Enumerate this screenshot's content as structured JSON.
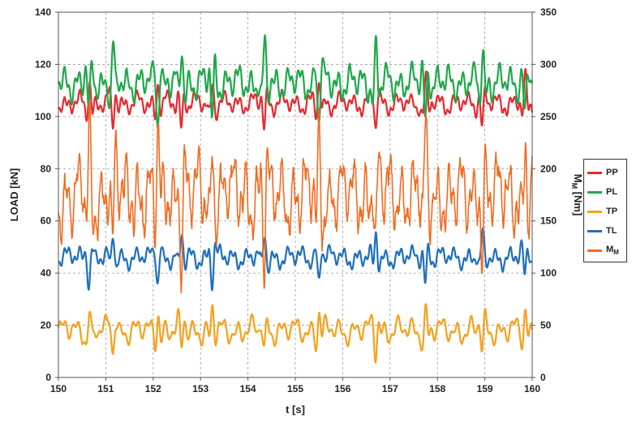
{
  "chart_data": {
    "type": "line",
    "xlabel": "t [s]",
    "ylabel_left": "LOAD [kN]",
    "ylabel_right": {
      "main": "M",
      "sub": "M",
      "unit": " [Nm]"
    },
    "xlim": [
      150,
      160
    ],
    "ylim_left": [
      0,
      140
    ],
    "ylim_right": [
      0,
      350
    ],
    "x_ticks": [
      "150",
      "151",
      "152",
      "153",
      "154",
      "155",
      "156",
      "157",
      "158",
      "159",
      "160"
    ],
    "y_left_ticks": [
      "0",
      "20",
      "40",
      "60",
      "80",
      "100",
      "120",
      "140"
    ],
    "y_right_ticks": [
      "0",
      "50",
      "100",
      "150",
      "200",
      "250",
      "300",
      "350"
    ],
    "grid": "dashed",
    "legend_position": "right",
    "series": [
      {
        "name": "PP",
        "label": "PP",
        "color": "#e8292f",
        "axis": "left",
        "base": 105,
        "amp": 2.5,
        "spike_amp": 9,
        "noise": 0.6,
        "seed": 11
      },
      {
        "name": "PL",
        "label": "PL",
        "color": "#1fa84a",
        "axis": "left",
        "base": 113,
        "amp": 4,
        "spike_amp": 14,
        "noise": 0.8,
        "seed": 23
      },
      {
        "name": "TP",
        "label": "TP",
        "color": "#f6a11b",
        "axis": "left",
        "base": 18,
        "amp": 3,
        "spike_amp": 8,
        "noise": 0.5,
        "seed": 37
      },
      {
        "name": "TL",
        "label": "TL",
        "color": "#1f6fbd",
        "axis": "left",
        "base": 46,
        "amp": 2.5,
        "spike_amp": 9,
        "noise": 0.5,
        "seed": 41
      },
      {
        "name": "MM",
        "label": "M",
        "label_sub": "M",
        "color": "#f26a1f",
        "axis": "right",
        "base": 175,
        "amp": 22,
        "spike_amp": 55,
        "noise": 14,
        "seed": 53
      }
    ],
    "spike_times": [
      150.65,
      151.15,
      152.1,
      152.6,
      153.25,
      154.35,
      155.5,
      156.7,
      157.75,
      158.95,
      159.85
    ]
  }
}
